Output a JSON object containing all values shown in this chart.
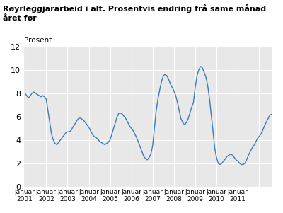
{
  "title": "Røyrleggjararbeid i alt. Prosentvis endring frå same månad året før",
  "ylabel": "Prosent",
  "ylim": [
    0,
    12
  ],
  "yticks": [
    0,
    2,
    4,
    6,
    8,
    10,
    12
  ],
  "line_color": "#3a7abf",
  "plot_bg": "#e8e8e8",
  "x_label_years": [
    2001,
    2002,
    2003,
    2004,
    2005,
    2006,
    2007,
    2008,
    2009,
    2010,
    2011
  ],
  "values": [
    8.0,
    7.8,
    7.6,
    7.8,
    8.0,
    8.1,
    8.0,
    7.9,
    7.8,
    7.7,
    7.8,
    7.7,
    7.5,
    6.5,
    5.5,
    4.5,
    4.0,
    3.7,
    3.6,
    3.8,
    4.0,
    4.2,
    4.4,
    4.6,
    4.7,
    4.7,
    4.8,
    5.1,
    5.3,
    5.6,
    5.8,
    5.9,
    5.8,
    5.7,
    5.5,
    5.3,
    5.1,
    4.8,
    4.5,
    4.3,
    4.2,
    4.1,
    3.9,
    3.8,
    3.7,
    3.6,
    3.7,
    3.8,
    4.0,
    4.5,
    5.0,
    5.5,
    6.0,
    6.3,
    6.3,
    6.2,
    6.0,
    5.8,
    5.5,
    5.2,
    5.0,
    4.8,
    4.5,
    4.2,
    3.8,
    3.4,
    3.0,
    2.6,
    2.4,
    2.3,
    2.5,
    2.8,
    3.5,
    5.0,
    6.5,
    7.5,
    8.3,
    9.0,
    9.5,
    9.6,
    9.5,
    9.2,
    8.8,
    8.5,
    8.2,
    7.8,
    7.2,
    6.5,
    5.8,
    5.5,
    5.3,
    5.5,
    5.8,
    6.3,
    6.8,
    7.2,
    8.5,
    9.5,
    10.0,
    10.3,
    10.2,
    9.8,
    9.4,
    8.7,
    7.6,
    6.2,
    4.8,
    3.3,
    2.5,
    2.0,
    1.9,
    2.0,
    2.2,
    2.4,
    2.6,
    2.7,
    2.8,
    2.7,
    2.5,
    2.3,
    2.2,
    2.0,
    1.9,
    1.9,
    2.0,
    2.3,
    2.7,
    3.0,
    3.3,
    3.5,
    3.8,
    4.1,
    4.3,
    4.5,
    4.8,
    5.2,
    5.5,
    5.8,
    6.1,
    6.2
  ]
}
